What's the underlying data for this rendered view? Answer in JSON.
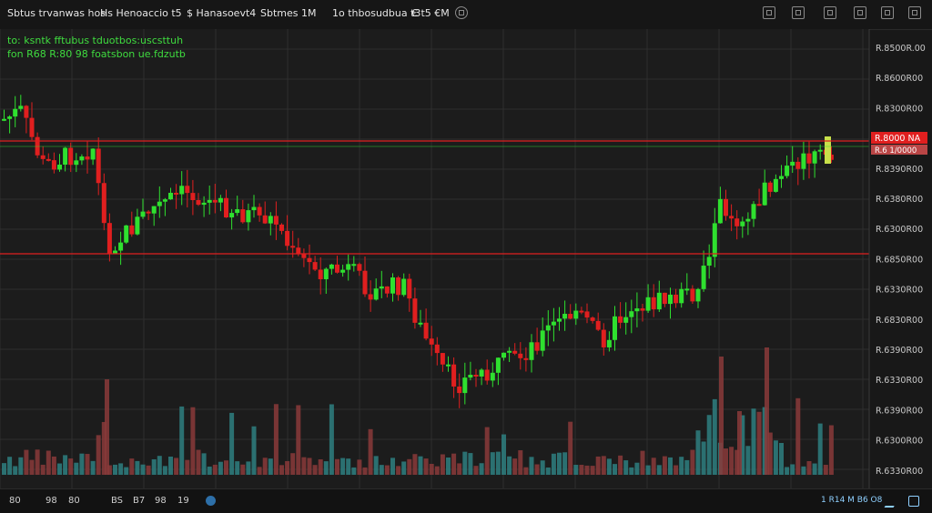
{
  "toolbar": {
    "items": [
      {
        "label": "Sbtus trvanwas hos",
        "icon": "symbol-icon"
      },
      {
        "label": "Hs  Henoaccio  t5",
        "icon": "interval-icon"
      },
      {
        "label": "$  Hanasoevt4",
        "icon": "indicator-icon"
      },
      {
        "label": "Sbtmes  1M",
        "icon": "clock-icon"
      },
      {
        "label": "1o  thbosudbua t3",
        "icon": "compare-icon"
      },
      {
        "label": "€  t5 €M",
        "icon": "currency-icon"
      }
    ],
    "right_icons": [
      "grid-icon",
      "layout-icon",
      "settings-icon",
      "screenshot-icon",
      "fullscreen-icon"
    ]
  },
  "legend": {
    "line1": "to: ksntk  fftubus  tduotbos:uscsttuh",
    "line2": "fon R68  R:80  98  foatsbon  ue.fdzutb"
  },
  "price_axis": {
    "labels": [
      "R.8500R.00",
      "R.8600R00",
      "R.8300R00",
      "R.8800R00",
      "R.8390R00",
      "R.6380R00",
      "R.6300R00",
      "R.6850R00",
      "R.6330R00",
      "R.6830R00",
      "R.6390R00",
      "R.6330R00",
      "R.6390R00",
      "R.6300R00",
      "R.6330R00"
    ],
    "current_price": "R.8000 NA",
    "current_sub": "R.6 1/0000"
  },
  "colors": {
    "background": "#181818",
    "grid": "#2e2e2e",
    "up": "#2fe02f",
    "down": "#e01f1f",
    "vol_up": "#2e7f80",
    "vol_down": "#8a3a3a",
    "hline": "#e01f1f"
  },
  "timeframes": [
    "80",
    "98",
    "80",
    "BS",
    "B7",
    "98",
    "19"
  ],
  "status": "1 R14 M  B6  O8"
}
